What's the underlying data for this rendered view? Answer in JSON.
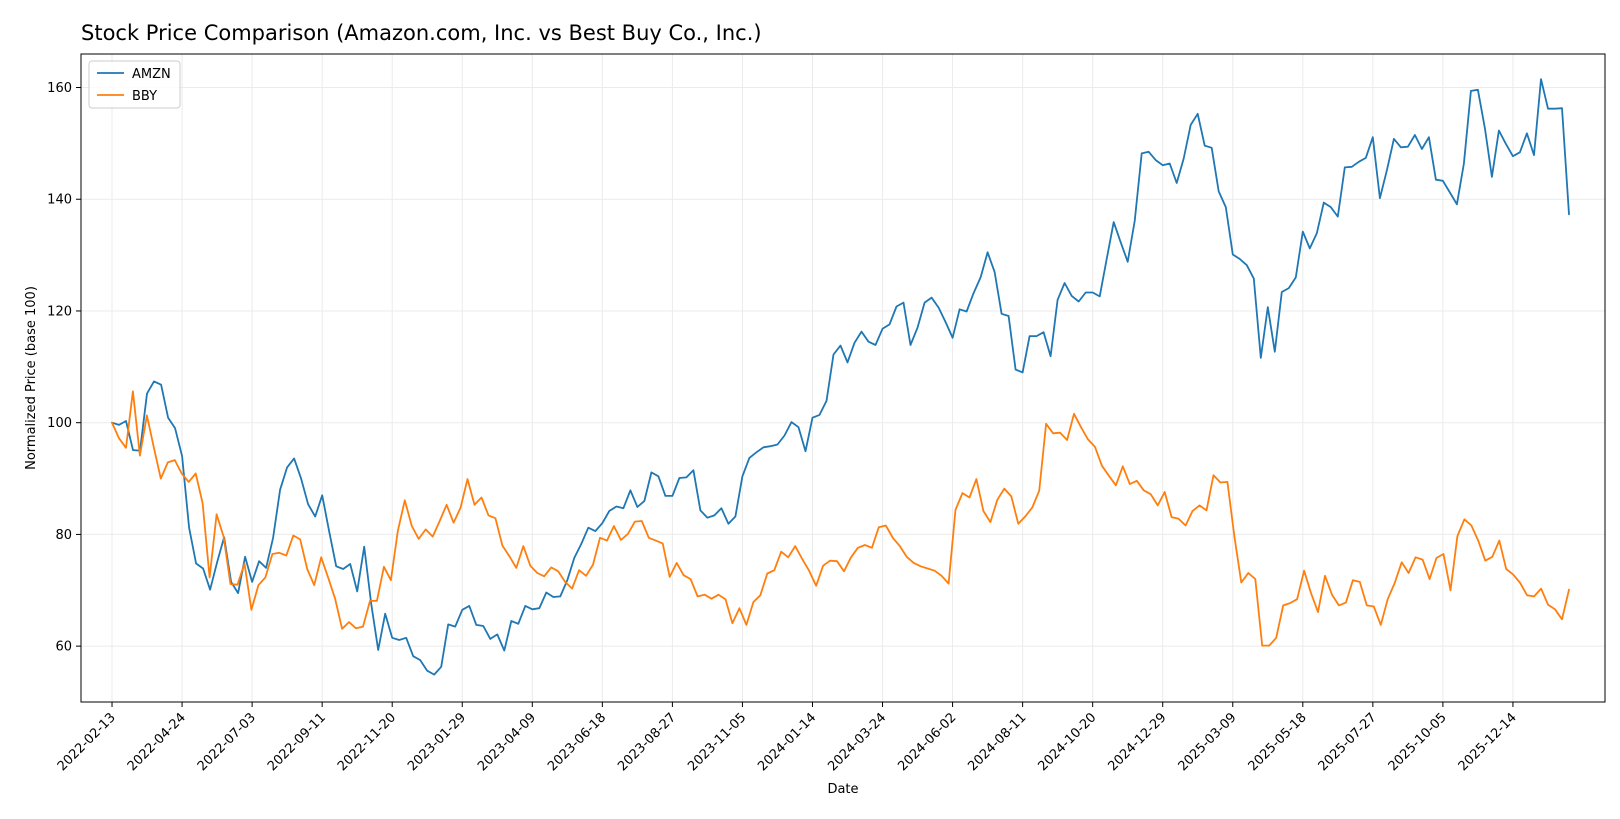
{
  "chart_data": {
    "type": "line",
    "title": "Stock Price Comparison (Amazon.com, Inc. vs Best Buy Co., Inc.)",
    "xlabel": "Date",
    "ylabel": "Normalized Price (base 100)",
    "x_start": "2022-02-13",
    "x_end": "2026-02-08",
    "xlim": [
      "2022-01-13",
      "2026-03-16"
    ],
    "ylim": [
      50,
      166
    ],
    "x_ticks": [
      "2022-02-13",
      "2022-04-24",
      "2022-07-03",
      "2022-09-11",
      "2022-11-20",
      "2023-01-29",
      "2023-04-09",
      "2023-06-18",
      "2023-08-27",
      "2023-11-05",
      "2024-01-14",
      "2024-03-24",
      "2024-06-02",
      "2024-08-11",
      "2024-10-20",
      "2024-12-29",
      "2025-03-09",
      "2025-05-18",
      "2025-07-27",
      "2025-10-05",
      "2025-12-14"
    ],
    "y_ticks": [
      60,
      80,
      100,
      120,
      140,
      160
    ],
    "grid": true,
    "legend_position": "top-left",
    "series": [
      {
        "name": "AMZN",
        "color": "#1f77b4",
        "values": [
          100,
          99.6,
          100.3,
          95.1,
          95.0,
          105.2,
          107.4,
          106.8,
          100.9,
          99.0,
          94.0,
          81.2,
          74.8,
          73.9,
          70.1,
          75.0,
          79.5,
          71.5,
          69.5,
          76.0,
          71.5,
          75.2,
          74.0,
          79.4,
          88.0,
          92.0,
          93.6,
          90.0,
          85.4,
          83.2,
          87.0,
          80.5,
          74.3,
          73.8,
          74.7,
          69.8,
          77.8,
          67.6,
          59.3,
          65.8,
          61.5,
          61.1,
          61.5,
          58.2,
          57.5,
          55.6,
          54.9,
          56.3,
          63.9,
          63.5,
          66.5,
          67.2,
          63.8,
          63.6,
          61.3,
          62.1,
          59.2,
          64.5,
          64.0,
          67.2,
          66.6,
          66.8,
          69.6,
          68.8,
          68.9,
          71.8,
          75.8,
          78.3,
          81.2,
          80.6,
          82.0,
          84.2,
          85.0,
          84.7,
          87.9,
          84.9,
          86.0,
          91.1,
          90.4,
          86.9,
          86.9,
          90.1,
          90.2,
          91.5,
          84.3,
          83.0,
          83.4,
          84.7,
          81.9,
          83.2,
          90.4,
          93.7,
          94.7,
          95.6,
          95.8,
          96.1,
          97.7,
          100.1,
          99.2,
          94.9,
          100.9,
          101.4,
          103.9,
          112.2,
          113.8,
          110.8,
          114.3,
          116.3,
          114.5,
          113.9,
          116.8,
          117.6,
          120.8,
          121.5,
          113.9,
          117.0,
          121.5,
          122.4,
          120.6,
          118.0,
          115.2,
          120.3,
          119.9,
          123.2,
          126.0,
          130.5,
          127.0,
          119.5,
          119.1,
          109.5,
          109.0,
          115.5,
          115.5,
          116.2,
          111.9,
          122.0,
          125.0,
          122.7,
          121.7,
          123.3,
          123.3,
          122.6,
          129.3,
          135.9,
          132.3,
          128.8,
          136.1,
          148.2,
          148.5,
          147.0,
          146.1,
          146.4,
          142.9,
          147.3,
          153.3,
          155.3,
          149.6,
          149.2,
          141.4,
          138.6,
          130.1,
          129.3,
          128.2,
          125.8,
          111.6,
          120.7,
          112.7,
          123.4,
          124.1,
          126.0,
          134.2,
          131.2,
          133.9,
          139.4,
          138.6,
          136.9,
          145.7,
          145.8,
          146.7,
          147.4,
          151.1,
          140.2,
          145.2,
          150.8,
          149.3,
          149.4,
          151.5,
          149.0,
          151.1,
          143.5,
          143.3,
          141.2,
          139.1,
          146.4,
          159.4,
          159.6,
          152.7,
          144.0,
          152.3,
          149.9,
          147.7,
          148.4,
          151.8,
          147.9,
          161.5,
          156.2,
          156.2,
          156.3,
          137.3
        ]
      },
      {
        "name": "BBY",
        "color": "#ff7f0e",
        "values": [
          100,
          97.2,
          95.5,
          105.6,
          94.1,
          101.3,
          95.6,
          90.0,
          92.9,
          93.3,
          90.9,
          89.4,
          90.9,
          85.6,
          72.3,
          83.6,
          79.6,
          71.1,
          71.0,
          74.8,
          66.5,
          70.9,
          72.3,
          76.5,
          76.7,
          76.2,
          79.8,
          79.1,
          73.8,
          70.9,
          75.9,
          72.3,
          68.5,
          63.1,
          64.3,
          63.2,
          63.5,
          68.1,
          68.1,
          74.2,
          71.8,
          80.6,
          86.1,
          81.5,
          79.2,
          80.9,
          79.6,
          82.4,
          85.3,
          82.1,
          84.8,
          89.9,
          85.3,
          86.6,
          83.4,
          82.9,
          78.0,
          76.1,
          74.0,
          77.9,
          74.4,
          73.1,
          72.5,
          74.1,
          73.4,
          71.5,
          70.3,
          73.6,
          72.6,
          74.6,
          79.4,
          78.9,
          81.5,
          79.0,
          80.1,
          82.3,
          82.4,
          79.4,
          78.9,
          78.4,
          72.4,
          74.9,
          72.7,
          72.0,
          68.9,
          69.2,
          68.5,
          69.2,
          68.4,
          64.1,
          66.8,
          63.8,
          67.9,
          69.1,
          73.0,
          73.6,
          76.9,
          75.9,
          77.9,
          75.6,
          73.5,
          70.8,
          74.4,
          75.3,
          75.2,
          73.4,
          75.9,
          77.6,
          78.1,
          77.6,
          81.3,
          81.6,
          79.4,
          77.9,
          76.0,
          74.9,
          74.3,
          73.9,
          73.5,
          72.6,
          71.2,
          84.4,
          87.4,
          86.6,
          89.9,
          84.2,
          82.2,
          86.2,
          88.2,
          86.8,
          81.9,
          83.2,
          84.8,
          87.8,
          99.8,
          98.1,
          98.2,
          96.9,
          101.6,
          99.2,
          97.0,
          95.7,
          92.3,
          90.5,
          88.8,
          92.2,
          89.0,
          89.6,
          87.9,
          87.2,
          85.2,
          87.6,
          83.1,
          82.8,
          81.6,
          84.2,
          85.2,
          84.3,
          90.6,
          89.3,
          89.4,
          79.6,
          71.4,
          73.1,
          72.0,
          60.1,
          60.1,
          61.5,
          67.3,
          67.7,
          68.4,
          73.5,
          69.5,
          66.1,
          72.6,
          69.2,
          67.3,
          67.8,
          71.8,
          71.5,
          67.3,
          67.1,
          63.8,
          68.4,
          71.3,
          75.0,
          73.1,
          75.9,
          75.5,
          72.0,
          75.8,
          76.5,
          70.0,
          79.7,
          82.7,
          81.6,
          78.8,
          75.3,
          76.0,
          78.9,
          73.8,
          72.8,
          71.3,
          69.1,
          68.9,
          70.3,
          67.4,
          66.6,
          64.8,
          70.1
        ]
      }
    ]
  }
}
